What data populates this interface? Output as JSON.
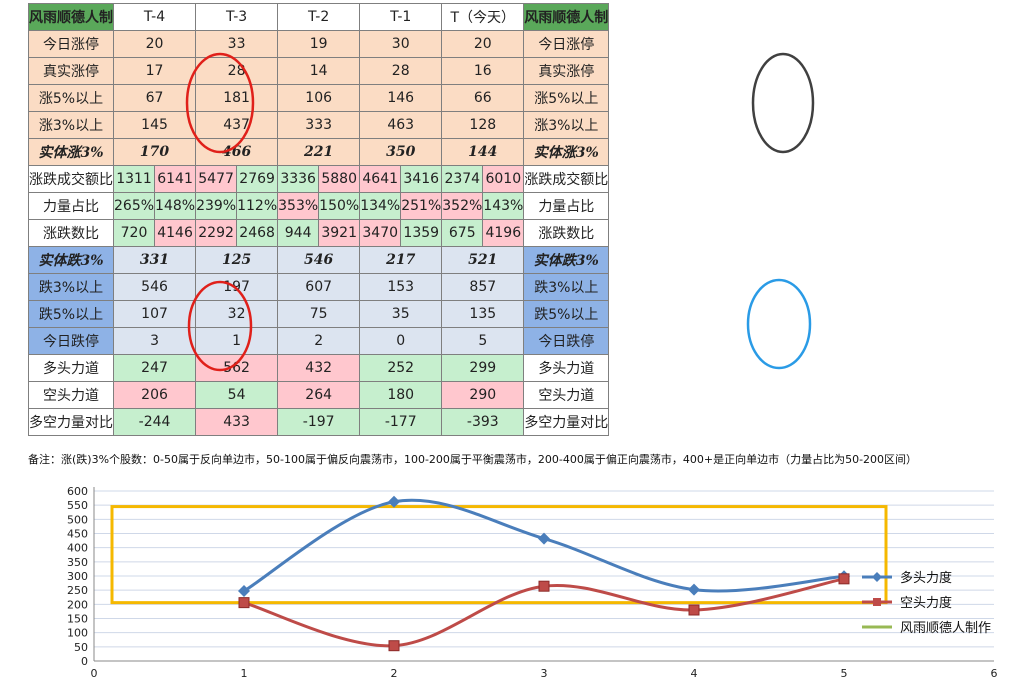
{
  "table": {
    "brand": "风雨顺德人制",
    "columns": [
      "T-4",
      "T-3",
      "T-2",
      "T-1",
      "T（今天）"
    ],
    "rows": {
      "limit_up": {
        "label": "今日涨停",
        "values": [
          "20",
          "33",
          "19",
          "30",
          "20"
        ]
      },
      "real_limit_up": {
        "label": "真实涨停",
        "values": [
          "17",
          "28",
          "14",
          "28",
          "16"
        ]
      },
      "up5": {
        "label": "涨5%以上",
        "values": [
          "67",
          "181",
          "106",
          "146",
          "66"
        ]
      },
      "up3": {
        "label": "涨3%以上",
        "values": [
          "145",
          "437",
          "333",
          "463",
          "128"
        ]
      },
      "solid_up3": {
        "label": "实体涨3%",
        "values": [
          "170",
          "466",
          "221",
          "350",
          "144"
        ]
      },
      "turnover_ratio": {
        "label": "涨跌成交额比",
        "values": [
          [
            "1311",
            "6141"
          ],
          [
            "5477",
            "2769"
          ],
          [
            "3336",
            "5880"
          ],
          [
            "4641",
            "3416"
          ],
          [
            "2374",
            "6010"
          ]
        ]
      },
      "power_ratio": {
        "label": "力量占比",
        "values": [
          [
            "265%",
            "148%"
          ],
          [
            "239%",
            "112%"
          ],
          [
            "353%",
            "150%"
          ],
          [
            "134%",
            "251%"
          ],
          [
            "352%",
            "143%"
          ]
        ]
      },
      "updown_count": {
        "label": "涨跌数比",
        "values": [
          [
            "720",
            "4146"
          ],
          [
            "2292",
            "2468"
          ],
          [
            "944",
            "3921"
          ],
          [
            "3470",
            "1359"
          ],
          [
            "675",
            "4196"
          ]
        ]
      },
      "solid_down3": {
        "label": "实体跌3%",
        "values": [
          "331",
          "125",
          "546",
          "217",
          "521"
        ]
      },
      "down3": {
        "label": "跌3%以上",
        "values": [
          "546",
          "197",
          "607",
          "153",
          "857"
        ]
      },
      "down5": {
        "label": "跌5%以上",
        "values": [
          "107",
          "32",
          "75",
          "35",
          "135"
        ]
      },
      "limit_down": {
        "label": "今日跌停",
        "values": [
          "3",
          "1",
          "2",
          "0",
          "5"
        ]
      },
      "bull_force": {
        "label": "多头力道",
        "values": [
          "247",
          "562",
          "432",
          "252",
          "299"
        ]
      },
      "bear_force": {
        "label": "空头力道",
        "values": [
          "206",
          "54",
          "264",
          "180",
          "290"
        ]
      },
      "net_force": {
        "label": "多空力量对比",
        "values": [
          "-244",
          "433",
          "-197",
          "-177",
          "-393"
        ]
      }
    }
  },
  "note": "备注：涨(跌)3%个股数：0-50属于反向单边市，50-100属于偏反向震荡市，100-200属于平衡震荡市，200-400属于偏正向震荡市，400+是正向单边市（力量占比为50-200区间）",
  "colors": {
    "peach": "#fbdcc4",
    "blue_band": "#dce4f0",
    "blue_label": "#8eb2e6",
    "green_cell": "#c6efce",
    "pink_cell": "#ffc7ce",
    "brand": "#5aa85a",
    "circle_red": "#e0201a",
    "circle_dark": "#404040",
    "circle_blue": "#2a9be6"
  },
  "chart_data": {
    "type": "scatter",
    "x_ticks": [
      0,
      1,
      2,
      3,
      4,
      5,
      6
    ],
    "y_ticks": [
      0,
      50,
      100,
      150,
      200,
      250,
      300,
      350,
      400,
      450,
      500,
      550,
      600
    ],
    "xlim": [
      0,
      6
    ],
    "ylim": [
      0,
      600
    ],
    "grid": "horizontal",
    "legend_position": "right",
    "series": [
      {
        "name": "多头力度",
        "color": "#4a7ebb",
        "marker": "diamond",
        "x": [
          1,
          2,
          3,
          4,
          5
        ],
        "y": [
          247,
          562,
          432,
          252,
          299
        ]
      },
      {
        "name": "空头力度",
        "color": "#be4b48",
        "marker": "square",
        "x": [
          1,
          2,
          3,
          4,
          5
        ],
        "y": [
          206,
          54,
          264,
          180,
          290
        ]
      },
      {
        "name": "风雨顺德人制作",
        "color": "#98b954",
        "marker": "none",
        "x": [],
        "y": []
      }
    ],
    "highlight_box": {
      "color": "#f5b800",
      "x_range": [
        0.12,
        5.28
      ],
      "y_range": [
        206,
        545
      ]
    }
  }
}
